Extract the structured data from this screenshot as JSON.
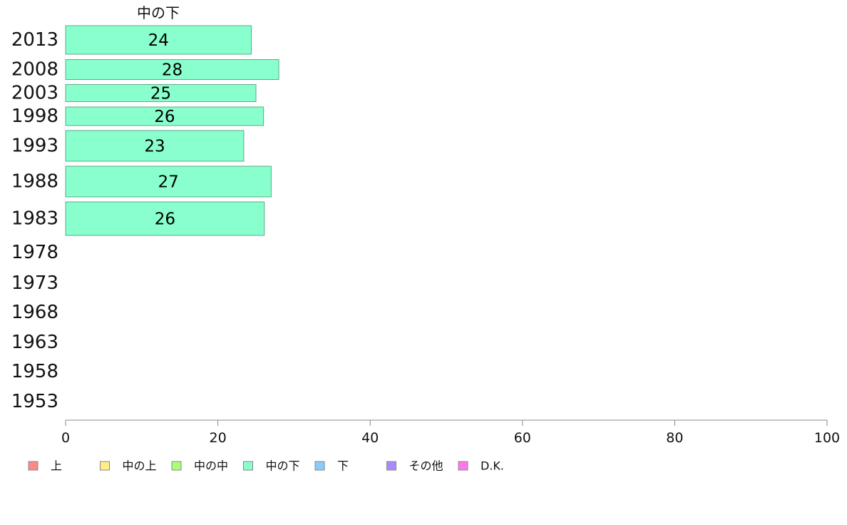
{
  "chart_data": {
    "type": "bar",
    "orientation": "horizontal",
    "stacked": true,
    "categories": [
      "2013",
      "2008",
      "2003",
      "1998",
      "1993",
      "1988",
      "1983",
      "1978",
      "1973",
      "1968",
      "1963",
      "1958",
      "1953"
    ],
    "series": [
      {
        "name": "中の下",
        "color": "#88ffcc",
        "values": [
          24.4,
          28.0,
          25.0,
          26.0,
          23.4,
          27.0,
          26.1,
          null,
          null,
          null,
          null,
          null,
          null
        ],
        "labels": [
          "24",
          "28",
          "25",
          "26",
          "23",
          "27",
          "26",
          "",
          "",
          "",
          "",
          "",
          ""
        ]
      }
    ],
    "series_title": "中の下",
    "xlim": [
      0,
      100
    ],
    "xticks": [
      0,
      20,
      40,
      60,
      80,
      100
    ],
    "grid": false,
    "legend": {
      "position": "bottom-left",
      "entries": [
        {
          "name": "上",
          "color": "#ff8888"
        },
        {
          "name": "中の上",
          "color": "#ffee88"
        },
        {
          "name": "中の中",
          "color": "#aaff77"
        },
        {
          "name": "中の下",
          "color": "#88ffcc"
        },
        {
          "name": "下",
          "color": "#88ccff"
        },
        {
          "name": "その他",
          "color": "#aa88ff"
        },
        {
          "name": "D.K.",
          "color": "#ff77ee"
        }
      ]
    }
  }
}
